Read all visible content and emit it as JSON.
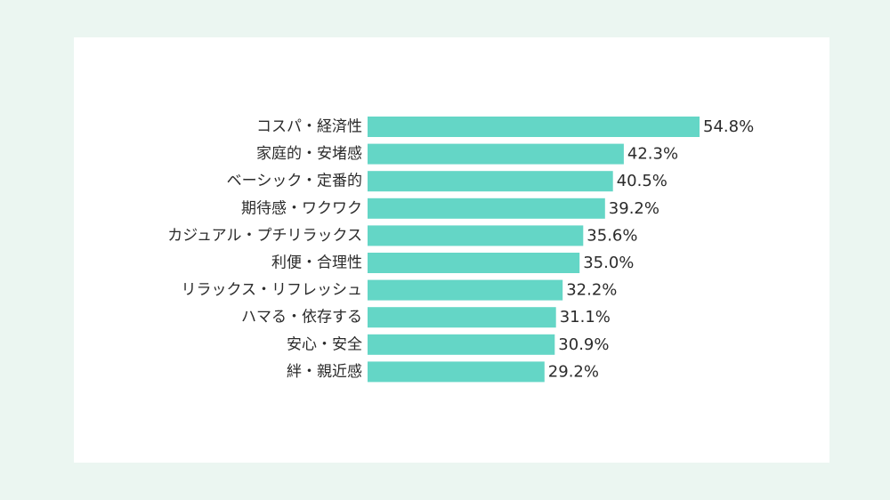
{
  "chart_data": {
    "type": "bar",
    "orientation": "horizontal",
    "categories": [
      "コスパ・経済性",
      "家庭的・安堵感",
      "ベーシック・定番的",
      "期待感・ワクワク",
      "カジュアル・プチリラックス",
      "利便・合理性",
      "リラックス・リフレッシュ",
      "ハマる・依存する",
      "安心・安全",
      "絆・親近感"
    ],
    "values": [
      54.8,
      42.3,
      40.5,
      39.2,
      35.6,
      35.0,
      32.2,
      31.1,
      30.9,
      29.2
    ],
    "value_labels": [
      "54.8%",
      "42.3%",
      "40.5%",
      "39.2%",
      "35.6%",
      "35.0%",
      "32.2%",
      "31.1%",
      "30.9%",
      "29.2%"
    ],
    "xlim": [
      0,
      54.8
    ],
    "grid": false,
    "colors": {
      "bar": "#64d6c6",
      "background": "#ebf6f1",
      "panel": "#ffffff",
      "text": "#2b2b2b"
    }
  }
}
